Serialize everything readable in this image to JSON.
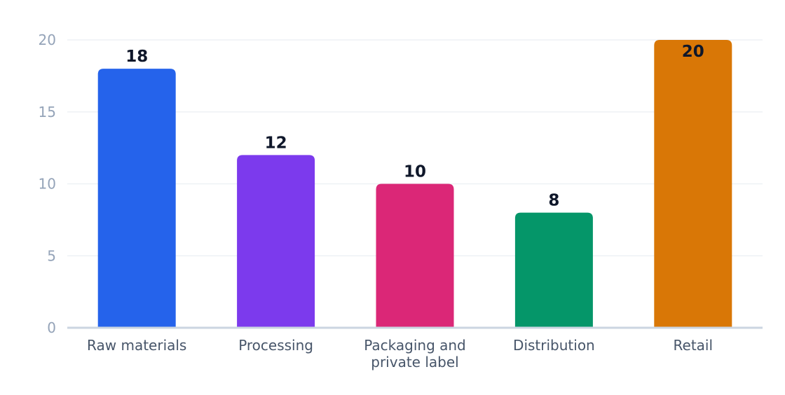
{
  "chart_data": {
    "type": "bar",
    "title": "",
    "xlabel": "",
    "ylabel": "",
    "categories": [
      "Raw materials",
      "Processing",
      "Packaging and private label",
      "Distribution",
      "Retail"
    ],
    "category_lines": [
      [
        "Raw materials"
      ],
      [
        "Processing"
      ],
      [
        "Packaging and",
        "private label"
      ],
      [
        "Distribution"
      ],
      [
        "Retail"
      ]
    ],
    "values": [
      18,
      12,
      10,
      8,
      20
    ],
    "colors": [
      "#2563eb",
      "#7c3aed",
      "#db2777",
      "#059669",
      "#d97706"
    ],
    "ylim": [
      0,
      20
    ],
    "yticks": [
      0,
      5,
      10,
      15,
      20
    ],
    "grid": true,
    "legend": "none",
    "data_labels": true
  }
}
